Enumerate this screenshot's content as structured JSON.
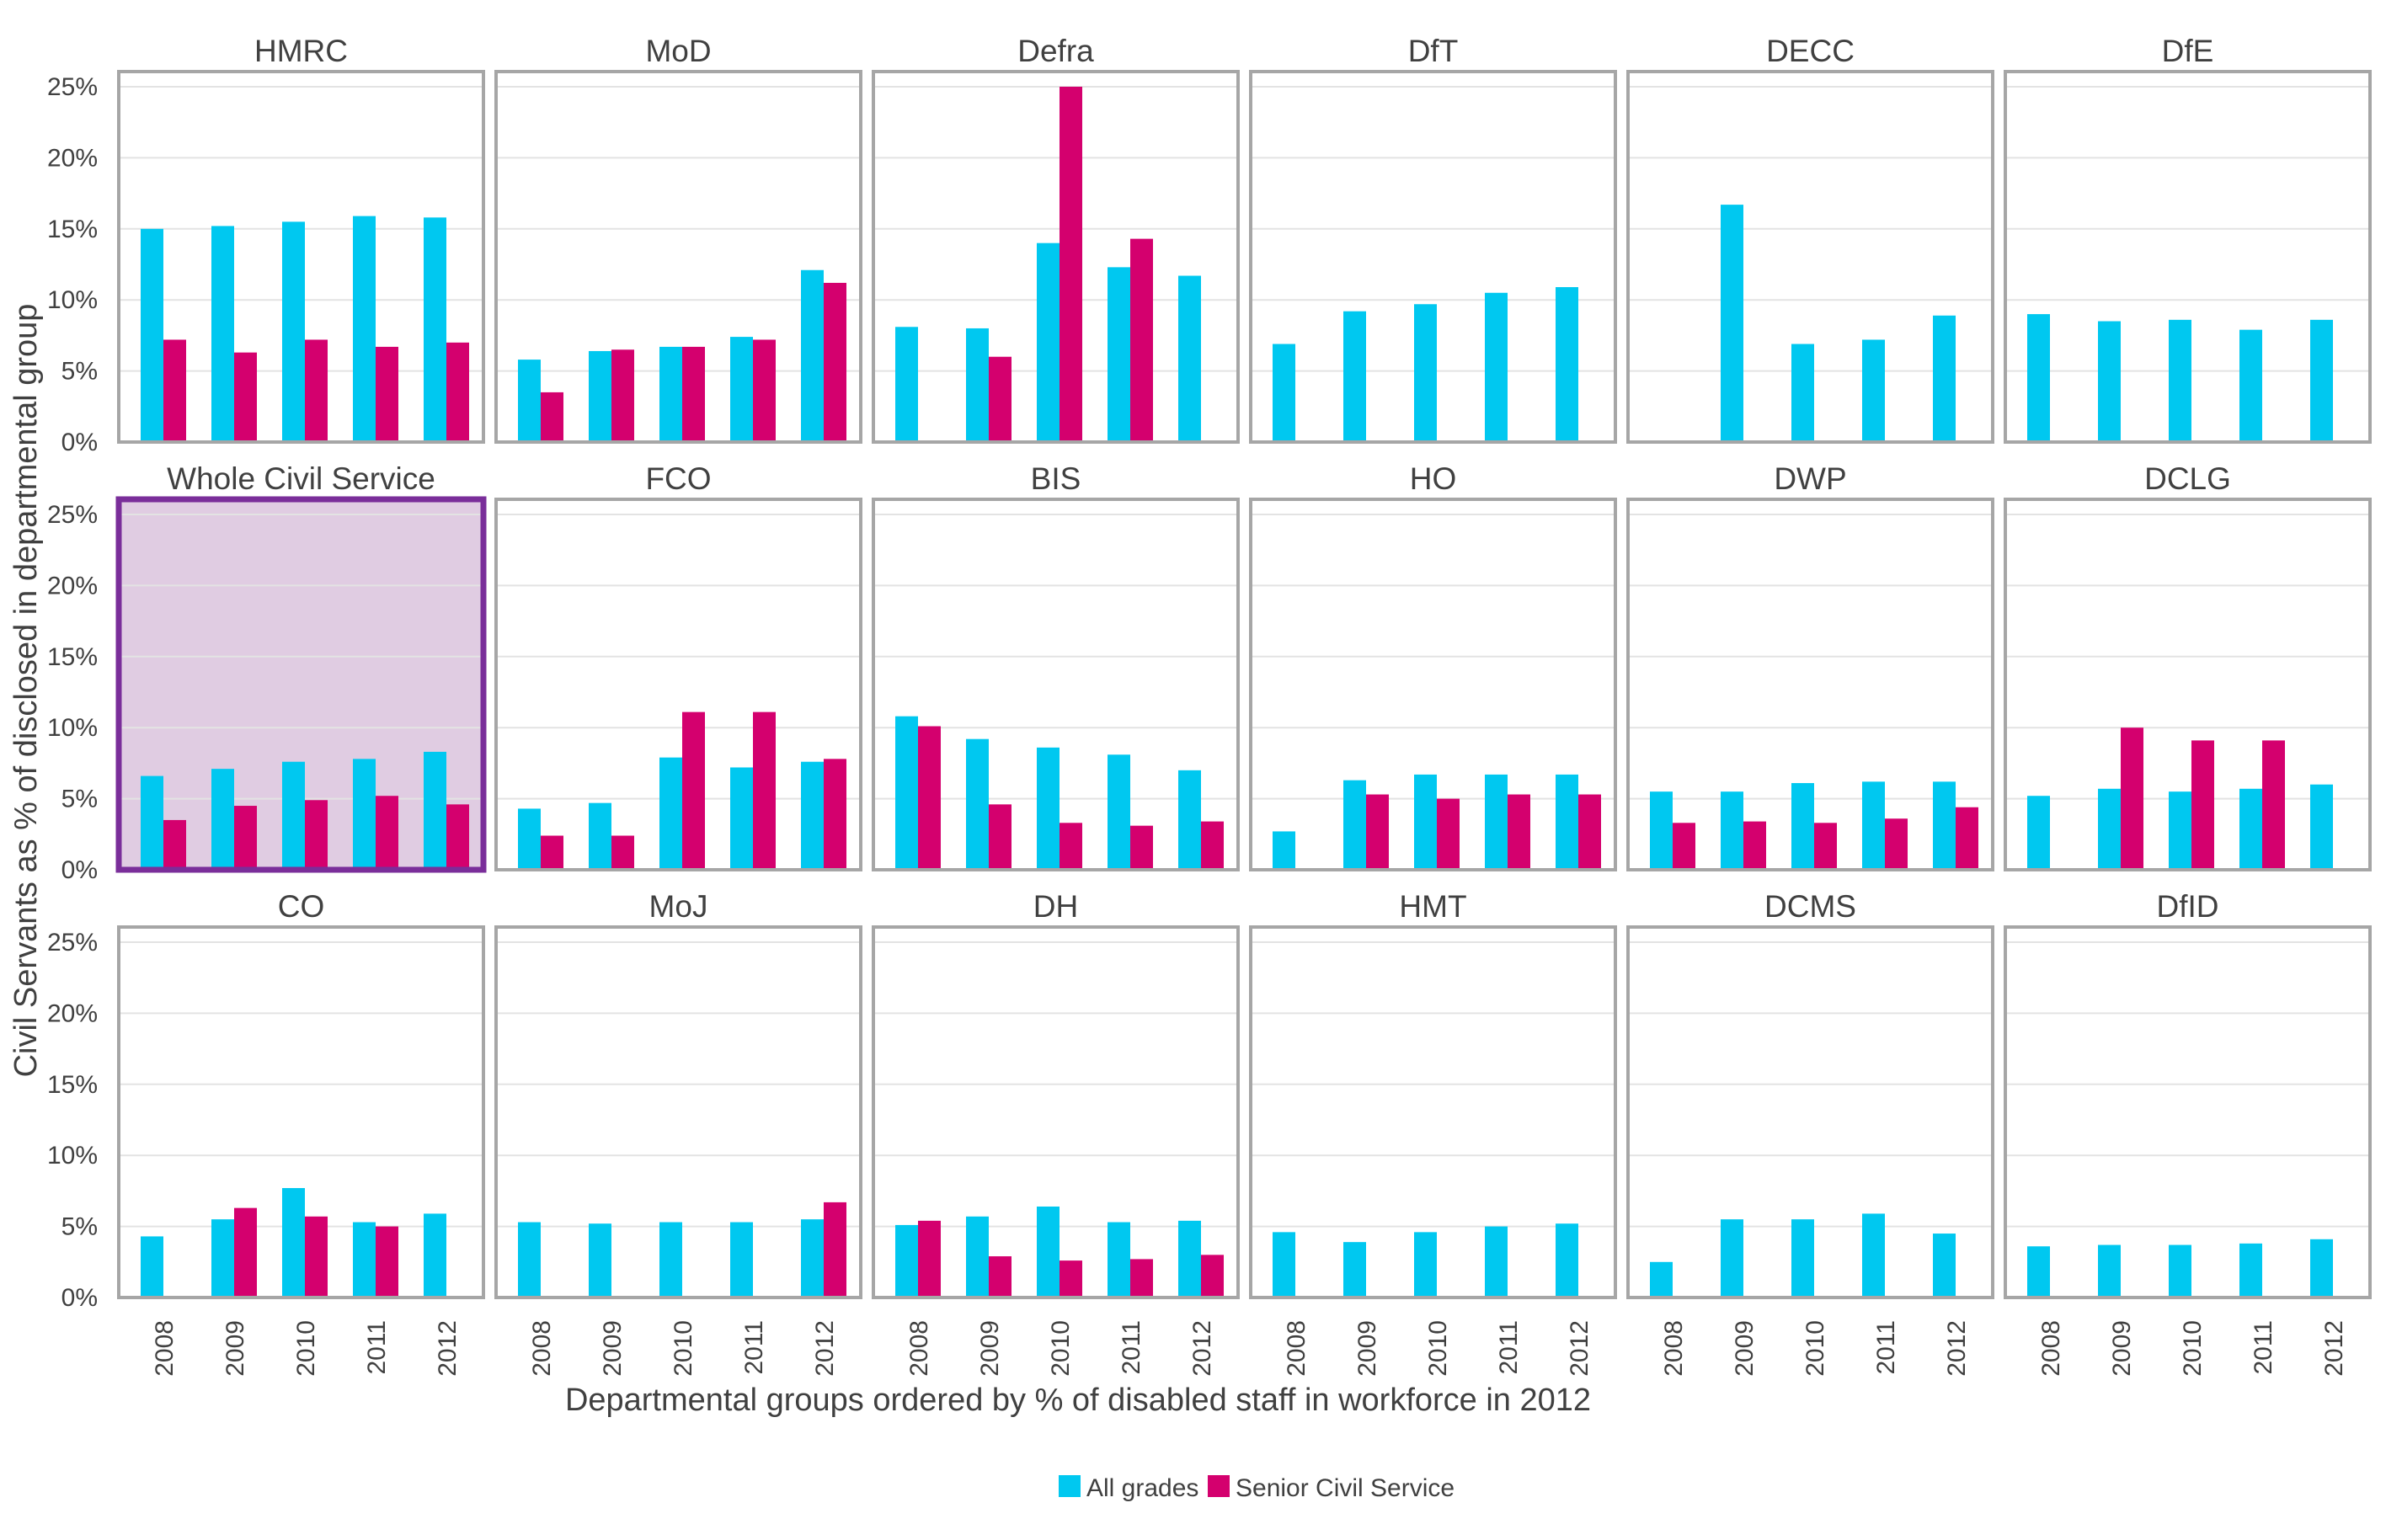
{
  "chart_data": {
    "type": "bar",
    "title": "",
    "xlabel": "Departmental groups ordered by % of disabled staff in workforce in 2012",
    "ylabel": "Civil Servants as % of disclosed in departmental group",
    "ylim": [
      0,
      25
    ],
    "yticks": [
      "0%",
      "5%",
      "10%",
      "15%",
      "20%",
      "25%"
    ],
    "categories": [
      "2008",
      "2009",
      "2010",
      "2011",
      "2012"
    ],
    "series_names": [
      "All grades",
      "Senior Civil Service"
    ],
    "colors": {
      "All grades": "#00c8f0",
      "Senior Civil Service": "#d4006e",
      "highlight_fill": "#e0cce2",
      "highlight_border": "#7a2e9a",
      "panel_border": "#a6a6a6",
      "grid": "#e3e3e3"
    },
    "legend_position": "bottom-center",
    "grid": true,
    "highlighted_panel": "Whole Civil Service",
    "panels": [
      {
        "name": "HMRC",
        "series": [
          {
            "name": "All grades",
            "values": [
              15.0,
              15.2,
              15.5,
              15.9,
              15.8
            ]
          },
          {
            "name": "Senior Civil Service",
            "values": [
              7.2,
              6.3,
              7.2,
              6.7,
              7.0
            ]
          }
        ]
      },
      {
        "name": "MoD",
        "series": [
          {
            "name": "All grades",
            "values": [
              5.8,
              6.4,
              6.7,
              7.4,
              12.1
            ]
          },
          {
            "name": "Senior Civil Service",
            "values": [
              3.5,
              6.5,
              6.7,
              7.2,
              11.2
            ]
          }
        ]
      },
      {
        "name": "Defra",
        "series": [
          {
            "name": "All grades",
            "values": [
              8.1,
              8.0,
              14.0,
              12.3,
              11.7
            ]
          },
          {
            "name": "Senior Civil Service",
            "values": [
              null,
              6.0,
              25.0,
              14.3,
              null
            ]
          }
        ]
      },
      {
        "name": "DfT",
        "series": [
          {
            "name": "All grades",
            "values": [
              6.9,
              9.2,
              9.7,
              10.5,
              10.9
            ]
          },
          {
            "name": "Senior Civil Service",
            "values": [
              null,
              null,
              null,
              null,
              null
            ]
          }
        ]
      },
      {
        "name": "DECC",
        "series": [
          {
            "name": "All grades",
            "values": [
              null,
              16.7,
              6.9,
              7.2,
              8.9
            ]
          },
          {
            "name": "Senior Civil Service",
            "values": [
              null,
              null,
              null,
              null,
              null
            ]
          }
        ]
      },
      {
        "name": "DfE",
        "series": [
          {
            "name": "All grades",
            "values": [
              9.0,
              8.5,
              8.6,
              7.9,
              8.6
            ]
          },
          {
            "name": "Senior Civil Service",
            "values": [
              null,
              null,
              null,
              null,
              null
            ]
          }
        ]
      },
      {
        "name": "Whole Civil Service",
        "series": [
          {
            "name": "All grades",
            "values": [
              6.6,
              7.1,
              7.6,
              7.8,
              8.3
            ]
          },
          {
            "name": "Senior Civil Service",
            "values": [
              3.5,
              4.5,
              4.9,
              5.2,
              4.6
            ]
          }
        ]
      },
      {
        "name": "FCO",
        "series": [
          {
            "name": "All grades",
            "values": [
              4.3,
              4.7,
              7.9,
              7.2,
              7.6
            ]
          },
          {
            "name": "Senior Civil Service",
            "values": [
              2.4,
              2.4,
              11.1,
              11.1,
              7.8
            ]
          }
        ]
      },
      {
        "name": "BIS",
        "series": [
          {
            "name": "All grades",
            "values": [
              10.8,
              9.2,
              8.6,
              8.1,
              7.0
            ]
          },
          {
            "name": "Senior Civil Service",
            "values": [
              10.1,
              4.6,
              3.3,
              3.1,
              3.4
            ]
          }
        ]
      },
      {
        "name": "HO",
        "series": [
          {
            "name": "All grades",
            "values": [
              2.7,
              6.3,
              6.7,
              6.7,
              6.7
            ]
          },
          {
            "name": "Senior Civil Service",
            "values": [
              null,
              5.3,
              5.0,
              5.3,
              5.3
            ]
          }
        ]
      },
      {
        "name": "DWP",
        "series": [
          {
            "name": "All grades",
            "values": [
              5.5,
              5.5,
              6.1,
              6.2,
              6.2
            ]
          },
          {
            "name": "Senior Civil Service",
            "values": [
              3.3,
              3.4,
              3.3,
              3.6,
              4.4
            ]
          }
        ]
      },
      {
        "name": "DCLG",
        "series": [
          {
            "name": "All grades",
            "values": [
              5.2,
              5.7,
              5.5,
              5.7,
              6.0
            ]
          },
          {
            "name": "Senior Civil Service",
            "values": [
              null,
              10.0,
              9.1,
              9.1,
              null
            ]
          }
        ]
      },
      {
        "name": "CO",
        "series": [
          {
            "name": "All grades",
            "values": [
              4.3,
              5.5,
              7.7,
              5.3,
              5.9
            ]
          },
          {
            "name": "Senior Civil Service",
            "values": [
              null,
              6.3,
              5.7,
              5.0,
              null
            ]
          }
        ]
      },
      {
        "name": "MoJ",
        "series": [
          {
            "name": "All grades",
            "values": [
              5.3,
              5.2,
              5.3,
              5.3,
              5.5
            ]
          },
          {
            "name": "Senior Civil Service",
            "values": [
              null,
              null,
              null,
              null,
              6.7
            ]
          }
        ]
      },
      {
        "name": "DH",
        "series": [
          {
            "name": "All grades",
            "values": [
              5.1,
              5.7,
              6.4,
              5.3,
              5.4
            ]
          },
          {
            "name": "Senior Civil Service",
            "values": [
              5.4,
              2.9,
              2.6,
              2.7,
              3.0
            ]
          }
        ]
      },
      {
        "name": "HMT",
        "series": [
          {
            "name": "All grades",
            "values": [
              4.6,
              3.9,
              4.6,
              5.0,
              5.2
            ]
          },
          {
            "name": "Senior Civil Service",
            "values": [
              null,
              null,
              null,
              null,
              null
            ]
          }
        ]
      },
      {
        "name": "DCMS",
        "series": [
          {
            "name": "All grades",
            "values": [
              2.5,
              5.5,
              5.5,
              5.9,
              4.5
            ]
          },
          {
            "name": "Senior Civil Service",
            "values": [
              null,
              null,
              null,
              null,
              null
            ]
          }
        ]
      },
      {
        "name": "DfID",
        "series": [
          {
            "name": "All grades",
            "values": [
              3.6,
              3.7,
              3.7,
              3.8,
              4.1
            ]
          },
          {
            "name": "Senior Civil Service",
            "values": [
              null,
              null,
              null,
              null,
              null
            ]
          }
        ]
      }
    ]
  }
}
